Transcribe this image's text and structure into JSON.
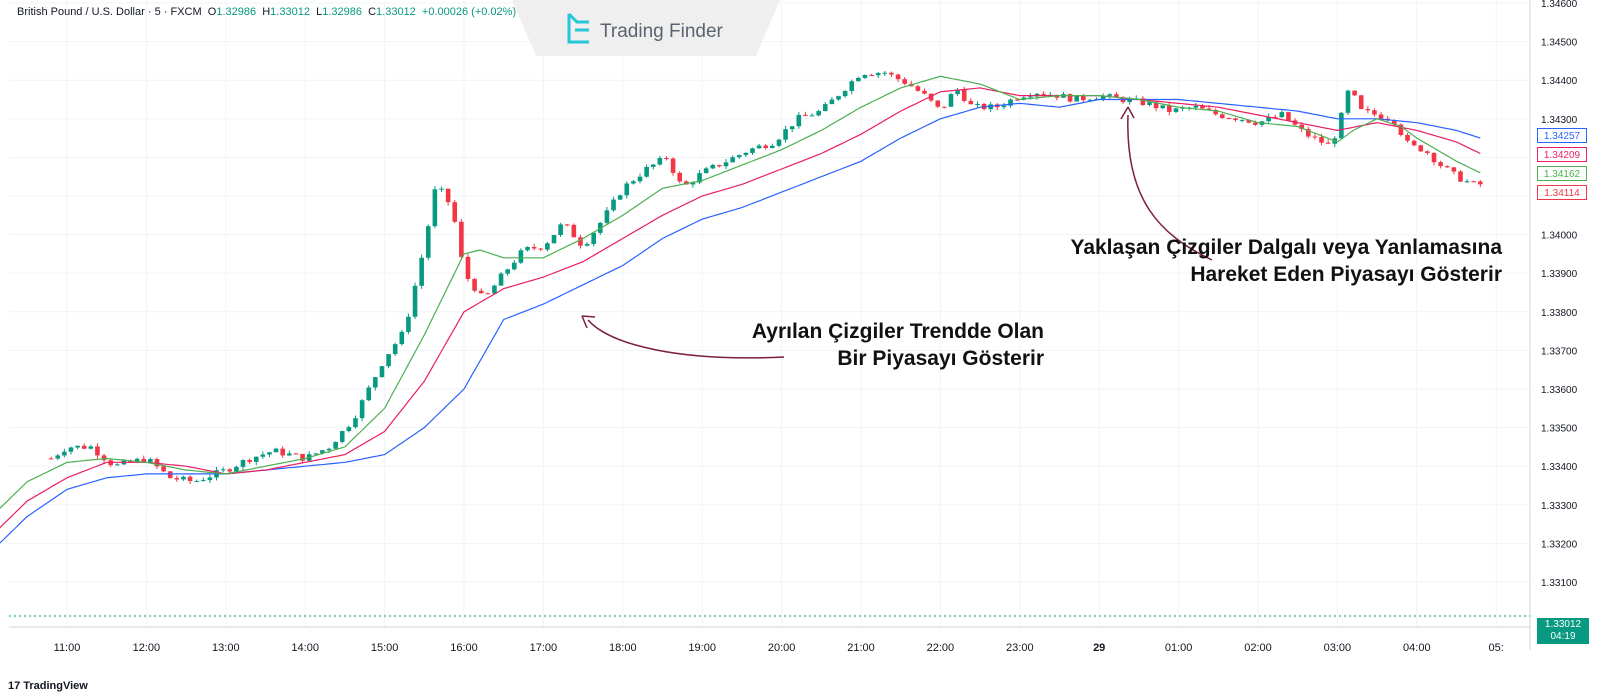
{
  "header": {
    "symbol": "British Pound / U.S. Dollar",
    "sep1": " · ",
    "timeframe": "5",
    "sep2": " · ",
    "exchange": "FXCM",
    "o_label": "O",
    "o_value": "1.32986",
    "h_label": "H",
    "h_value": "1.33012",
    "l_label": "L",
    "l_value": "1.32986",
    "c_label": "C",
    "c_value": "1.33012",
    "change": "+0.00026 (+0.02%)"
  },
  "watermark": {
    "text": "Trading Finder",
    "icon": "trading-finder-logo-icon"
  },
  "annotations": {
    "diverging": {
      "line1": "Ayrılan Çizgiler Trendde Olan",
      "line2": "Bir Piyasayı Gösterir"
    },
    "converging": {
      "line1": "Yaklaşan Çizgiler Dalgalı veya Yanlamasına",
      "line2": "Hareket Eden Piyasayı Gösterir"
    }
  },
  "price_tags": {
    "blue": "1.34257",
    "red": "1.34209",
    "green": "1.34162",
    "last_red": "1.34114",
    "current_price": "1.33012",
    "countdown": "04:19"
  },
  "footer": {
    "brand": "TradingView",
    "brand_icon": "tradingview-logo-icon"
  },
  "colors": {
    "up": "#089981",
    "down": "#f23645",
    "ma_fast": "#4caf50",
    "ma_mid": "#e91e63",
    "ma_slow": "#2962ff",
    "arrow": "#7b1e3c"
  },
  "chart_data": {
    "type": "candlestick",
    "title": "British Pound / U.S. Dollar · 5 · FXCM",
    "x_ticks": [
      "11:00",
      "12:00",
      "13:00",
      "14:00",
      "15:00",
      "16:00",
      "17:00",
      "18:00",
      "19:00",
      "20:00",
      "21:00",
      "22:00",
      "23:00",
      "29",
      "01:00",
      "02:00",
      "03:00",
      "04:00",
      "05:"
    ],
    "y_ticks": [
      "1.34600",
      "1.34500",
      "1.34400",
      "1.34300",
      "1.34200",
      "1.34100",
      "1.34000",
      "1.33900",
      "1.33800",
      "1.33700",
      "1.33600",
      "1.33500",
      "1.33400",
      "1.33300",
      "1.33200",
      "1.33100"
    ],
    "ylim": [
      1.3304,
      1.346
    ],
    "series_names": [
      "Green Moving Average",
      "Red Moving Average",
      "Blue Moving Average"
    ],
    "close_anchors": [
      [
        10.8,
        1.3342
      ],
      [
        11.0,
        1.3345
      ],
      [
        11.3,
        1.3345
      ],
      [
        11.6,
        1.334
      ],
      [
        12.0,
        1.3342
      ],
      [
        12.3,
        1.3337
      ],
      [
        12.6,
        1.3336
      ],
      [
        13.0,
        1.3339
      ],
      [
        13.3,
        1.3342
      ],
      [
        13.6,
        1.3344
      ],
      [
        14.0,
        1.3342
      ],
      [
        14.3,
        1.3345
      ],
      [
        14.6,
        1.3352
      ],
      [
        15.0,
        1.3368
      ],
      [
        15.25,
        1.3375
      ],
      [
        15.5,
        1.3397
      ],
      [
        15.65,
        1.3413
      ],
      [
        15.85,
        1.3407
      ],
      [
        16.0,
        1.339
      ],
      [
        16.25,
        1.3383
      ],
      [
        16.5,
        1.339
      ],
      [
        16.75,
        1.3396
      ],
      [
        17.0,
        1.3397
      ],
      [
        17.25,
        1.3403
      ],
      [
        17.5,
        1.3397
      ],
      [
        17.75,
        1.3404
      ],
      [
        18.0,
        1.3412
      ],
      [
        18.3,
        1.3417
      ],
      [
        18.55,
        1.342
      ],
      [
        18.75,
        1.3412
      ],
      [
        19.0,
        1.3416
      ],
      [
        19.3,
        1.3419
      ],
      [
        19.6,
        1.3422
      ],
      [
        19.9,
        1.3424
      ],
      [
        20.2,
        1.343
      ],
      [
        20.5,
        1.3432
      ],
      [
        20.8,
        1.3438
      ],
      [
        21.0,
        1.3442
      ],
      [
        21.3,
        1.3442
      ],
      [
        21.6,
        1.3439
      ],
      [
        21.8,
        1.3436
      ],
      [
        22.0,
        1.3432
      ],
      [
        22.2,
        1.3438
      ],
      [
        22.4,
        1.3433
      ],
      [
        22.7,
        1.3433
      ],
      [
        23.0,
        1.3436
      ],
      [
        23.2,
        1.3437
      ],
      [
        23.5,
        1.3436
      ],
      [
        23.7,
        1.3435
      ],
      [
        24.0,
        1.3436
      ],
      [
        24.3,
        1.3435
      ],
      [
        24.6,
        1.3434
      ],
      [
        24.9,
        1.3432
      ],
      [
        25.2,
        1.3433
      ],
      [
        25.5,
        1.3431
      ],
      [
        25.8,
        1.343
      ],
      [
        26.0,
        1.3429
      ],
      [
        26.3,
        1.3431
      ],
      [
        26.6,
        1.3426
      ],
      [
        26.9,
        1.3423
      ],
      [
        27.0,
        1.3427
      ],
      [
        27.15,
        1.3438
      ],
      [
        27.3,
        1.3432
      ],
      [
        27.5,
        1.3431
      ],
      [
        27.7,
        1.343
      ],
      [
        27.9,
        1.3423
      ],
      [
        28.1,
        1.3422
      ],
      [
        28.3,
        1.3418
      ],
      [
        28.5,
        1.3415
      ],
      [
        28.7,
        1.3413
      ],
      [
        28.8,
        1.3413
      ]
    ],
    "ma_fast": [
      [
        10.0,
        1.3326
      ],
      [
        10.5,
        1.3336
      ],
      [
        11.0,
        1.3341
      ],
      [
        11.5,
        1.3342
      ],
      [
        12.0,
        1.3341
      ],
      [
        12.5,
        1.3339
      ],
      [
        13.0,
        1.3338
      ],
      [
        13.5,
        1.334
      ],
      [
        14.0,
        1.3342
      ],
      [
        14.5,
        1.3345
      ],
      [
        15.0,
        1.3355
      ],
      [
        15.5,
        1.3374
      ],
      [
        16.0,
        1.3395
      ],
      [
        16.2,
        1.3396
      ],
      [
        16.5,
        1.3394
      ],
      [
        17.0,
        1.3394
      ],
      [
        17.5,
        1.3399
      ],
      [
        18.0,
        1.3405
      ],
      [
        18.5,
        1.3412
      ],
      [
        19.0,
        1.3414
      ],
      [
        19.5,
        1.3418
      ],
      [
        20.0,
        1.3422
      ],
      [
        20.5,
        1.3427
      ],
      [
        21.0,
        1.3433
      ],
      [
        21.5,
        1.3438
      ],
      [
        22.0,
        1.3441
      ],
      [
        22.5,
        1.3439
      ],
      [
        23.0,
        1.3435
      ],
      [
        23.5,
        1.3436
      ],
      [
        24.0,
        1.3436
      ],
      [
        24.5,
        1.3435
      ],
      [
        25.0,
        1.3433
      ],
      [
        25.5,
        1.3432
      ],
      [
        26.0,
        1.3429
      ],
      [
        26.5,
        1.3428
      ],
      [
        27.0,
        1.3424
      ],
      [
        27.2,
        1.3427
      ],
      [
        27.5,
        1.343
      ],
      [
        27.8,
        1.3428
      ],
      [
        28.0,
        1.3425
      ],
      [
        28.5,
        1.3419
      ],
      [
        28.8,
        1.3416
      ]
    ],
    "ma_mid": [
      [
        10.0,
        1.3321
      ],
      [
        10.5,
        1.3331
      ],
      [
        11.0,
        1.3337
      ],
      [
        11.5,
        1.3341
      ],
      [
        12.0,
        1.3341
      ],
      [
        12.5,
        1.334
      ],
      [
        13.0,
        1.3338
      ],
      [
        13.5,
        1.3339
      ],
      [
        14.0,
        1.3341
      ],
      [
        14.5,
        1.3343
      ],
      [
        15.0,
        1.3349
      ],
      [
        15.5,
        1.3362
      ],
      [
        16.0,
        1.338
      ],
      [
        16.5,
        1.3386
      ],
      [
        17.0,
        1.3389
      ],
      [
        17.5,
        1.3393
      ],
      [
        18.0,
        1.3399
      ],
      [
        18.5,
        1.3405
      ],
      [
        19.0,
        1.341
      ],
      [
        19.5,
        1.3413
      ],
      [
        20.0,
        1.3417
      ],
      [
        20.5,
        1.3421
      ],
      [
        21.0,
        1.3426
      ],
      [
        21.5,
        1.3432
      ],
      [
        22.0,
        1.3437
      ],
      [
        22.5,
        1.3438
      ],
      [
        23.0,
        1.3436
      ],
      [
        23.5,
        1.3436
      ],
      [
        24.0,
        1.3436
      ],
      [
        24.5,
        1.3435
      ],
      [
        25.0,
        1.3434
      ],
      [
        25.5,
        1.3433
      ],
      [
        26.0,
        1.3431
      ],
      [
        26.5,
        1.3429
      ],
      [
        27.0,
        1.3427
      ],
      [
        27.5,
        1.3429
      ],
      [
        28.0,
        1.3427
      ],
      [
        28.5,
        1.3424
      ],
      [
        28.8,
        1.3421
      ]
    ],
    "ma_slow": [
      [
        10.0,
        1.3317
      ],
      [
        10.5,
        1.3327
      ],
      [
        11.0,
        1.3334
      ],
      [
        11.5,
        1.3337
      ],
      [
        12.0,
        1.3338
      ],
      [
        12.5,
        1.3338
      ],
      [
        13.0,
        1.3338
      ],
      [
        13.5,
        1.3339
      ],
      [
        14.0,
        1.334
      ],
      [
        14.5,
        1.3341
      ],
      [
        15.0,
        1.3343
      ],
      [
        15.5,
        1.335
      ],
      [
        16.0,
        1.336
      ],
      [
        16.5,
        1.3378
      ],
      [
        17.0,
        1.3382
      ],
      [
        17.5,
        1.3387
      ],
      [
        18.0,
        1.3392
      ],
      [
        18.5,
        1.3399
      ],
      [
        19.0,
        1.3404
      ],
      [
        19.5,
        1.3407
      ],
      [
        20.0,
        1.3411
      ],
      [
        20.5,
        1.3415
      ],
      [
        21.0,
        1.3419
      ],
      [
        21.5,
        1.3425
      ],
      [
        22.0,
        1.343
      ],
      [
        22.5,
        1.3433
      ],
      [
        23.0,
        1.3434
      ],
      [
        23.5,
        1.3433
      ],
      [
        24.0,
        1.3435
      ],
      [
        24.5,
        1.3435
      ],
      [
        25.0,
        1.3435
      ],
      [
        25.5,
        1.3434
      ],
      [
        26.0,
        1.3433
      ],
      [
        26.5,
        1.3432
      ],
      [
        27.0,
        1.343
      ],
      [
        27.5,
        1.343
      ],
      [
        28.0,
        1.3429
      ],
      [
        28.5,
        1.3427
      ],
      [
        28.8,
        1.3425
      ]
    ],
    "current_price": 1.33012
  }
}
